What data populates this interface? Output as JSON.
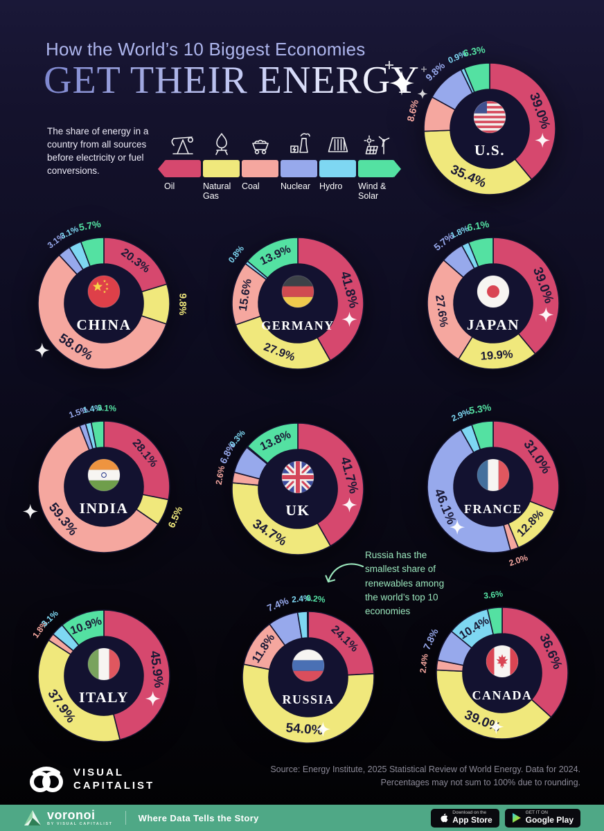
{
  "header": {
    "kicker": "How the World’s 10 Biggest Economies",
    "title": "GET THEIR ENERGY",
    "description": "The share of energy in a country from all sources before electricity or fuel conversions."
  },
  "legend": {
    "items": [
      {
        "label": "Oil",
        "color": "#d6486e",
        "icon": "oil-pumpjack-icon"
      },
      {
        "label": "Natural Gas",
        "color": "#f0e87c",
        "icon": "gas-flame-icon"
      },
      {
        "label": "Coal",
        "color": "#f5a79f",
        "icon": "coal-cart-icon"
      },
      {
        "label": "Nuclear",
        "color": "#97a9ec",
        "icon": "nuclear-plant-icon"
      },
      {
        "label": "Hydro",
        "color": "#7ed7f2",
        "icon": "hydro-dam-icon"
      },
      {
        "label": "Wind & Solar",
        "color": "#54e1a2",
        "icon": "wind-solar-icon"
      }
    ]
  },
  "chart_data": {
    "type": "pie",
    "variant": "donut",
    "start_angle": "12-o-clock",
    "direction": "clockwise",
    "categories": [
      "Oil",
      "Natural Gas",
      "Coal",
      "Nuclear",
      "Hydro",
      "Wind & Solar"
    ],
    "colors": [
      "#d6486e",
      "#f0e87c",
      "#f5a79f",
      "#97a9ec",
      "#7ed7f2",
      "#54e1a2"
    ],
    "unit": "%",
    "series": [
      {
        "name": "U.S.",
        "flag": "us-flag-icon",
        "values": [
          39.0,
          35.4,
          8.6,
          9.8,
          0.9,
          6.3
        ]
      },
      {
        "name": "CHINA",
        "flag": "china-flag-icon",
        "values": [
          20.3,
          9.8,
          58.0,
          3.1,
          3.1,
          5.7
        ]
      },
      {
        "name": "GERMANY",
        "flag": "germany-flag-icon",
        "values": [
          41.8,
          27.9,
          15.6,
          0,
          0.8,
          13.9
        ]
      },
      {
        "name": "JAPAN",
        "flag": "japan-flag-icon",
        "values": [
          39.0,
          19.9,
          27.6,
          5.7,
          1.8,
          6.1
        ]
      },
      {
        "name": "INDIA",
        "flag": "india-flag-icon",
        "values": [
          28.1,
          6.5,
          59.3,
          1.5,
          1.4,
          3.1
        ]
      },
      {
        "name": "UK",
        "flag": "uk-flag-icon",
        "values": [
          41.7,
          34.7,
          2.6,
          6.8,
          0.3,
          13.8
        ]
      },
      {
        "name": "FRANCE",
        "flag": "france-flag-icon",
        "values": [
          31.0,
          12.8,
          2.0,
          46.1,
          2.9,
          5.3
        ]
      },
      {
        "name": "ITALY",
        "flag": "italy-flag-icon",
        "values": [
          45.9,
          37.9,
          1.8,
          0,
          3.1,
          10.9
        ]
      },
      {
        "name": "RUSSIA",
        "flag": "russia-flag-icon",
        "values": [
          24.1,
          54.0,
          11.8,
          7.4,
          2.4,
          0.2
        ]
      },
      {
        "name": "CANADA",
        "flag": "canada-flag-icon",
        "values": [
          36.6,
          39.0,
          2.4,
          7.8,
          10.4,
          3.6
        ]
      }
    ]
  },
  "annotation": {
    "text": "Russia has the smallest share of renewables among the world’s top 10 economies",
    "color": "#9be7bd"
  },
  "footer": {
    "brand_line1": "VISUAL",
    "brand_line2": "CAPITALIST",
    "source_line1": "Source: Energy Institute, 2025 Statistical Review of World Energy. Data for 2024.",
    "source_line2": "Percentages may not sum to 100% due to rounding."
  },
  "bottom_bar": {
    "bar_color": "#4fa886",
    "brand": "voronoi",
    "brand_sub": "BY VISUAL CAPITALIST",
    "tagline": "Where Data Tells the Story",
    "appstore_kicker": "Download on the",
    "appstore_label": "App Store",
    "gplay_kicker": "GET IT ON",
    "gplay_label": "Google Play"
  }
}
